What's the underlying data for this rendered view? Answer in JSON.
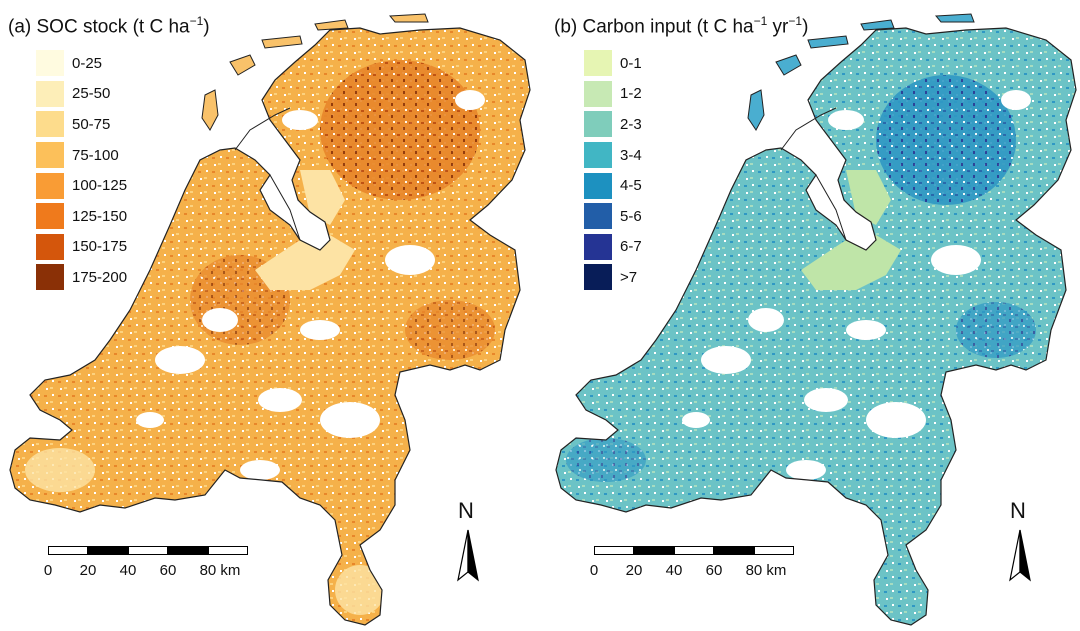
{
  "panels": {
    "a": {
      "prefix": "(a) SOC stock (t C ha",
      "sup": "−1",
      "suffix": ")",
      "legend": [
        {
          "label": "0-25",
          "color": "#fffbe0"
        },
        {
          "label": "25-50",
          "color": "#fdeeb8"
        },
        {
          "label": "50-75",
          "color": "#fddc8c"
        },
        {
          "label": "75-100",
          "color": "#fcc05a"
        },
        {
          "label": "100-125",
          "color": "#f99c35"
        },
        {
          "label": "125-150",
          "color": "#ef7a1c"
        },
        {
          "label": "150-175",
          "color": "#d4560c"
        },
        {
          "label": "175-200",
          "color": "#8a3006"
        }
      ]
    },
    "b": {
      "prefix": "(b) Carbon input (t C ha",
      "sup1": "−1",
      "mid": " yr",
      "sup2": "−1",
      "suffix": ")",
      "legend": [
        {
          "label": "0-1",
          "color": "#e6f5b3"
        },
        {
          "label": "1-2",
          "color": "#c7e9b4"
        },
        {
          "label": "2-3",
          "color": "#7fcdbb"
        },
        {
          "label": "3-4",
          "color": "#41b6c4"
        },
        {
          "label": "4-5",
          "color": "#1d91c0"
        },
        {
          "label": "5-6",
          "color": "#225ea8"
        },
        {
          "label": "6-7",
          "color": "#253494"
        },
        {
          "label": ">7",
          "color": "#081d58"
        }
      ]
    }
  },
  "scale": {
    "ticks": [
      "0",
      "20",
      "40",
      "60",
      "80 km"
    ]
  },
  "north_label": "N"
}
